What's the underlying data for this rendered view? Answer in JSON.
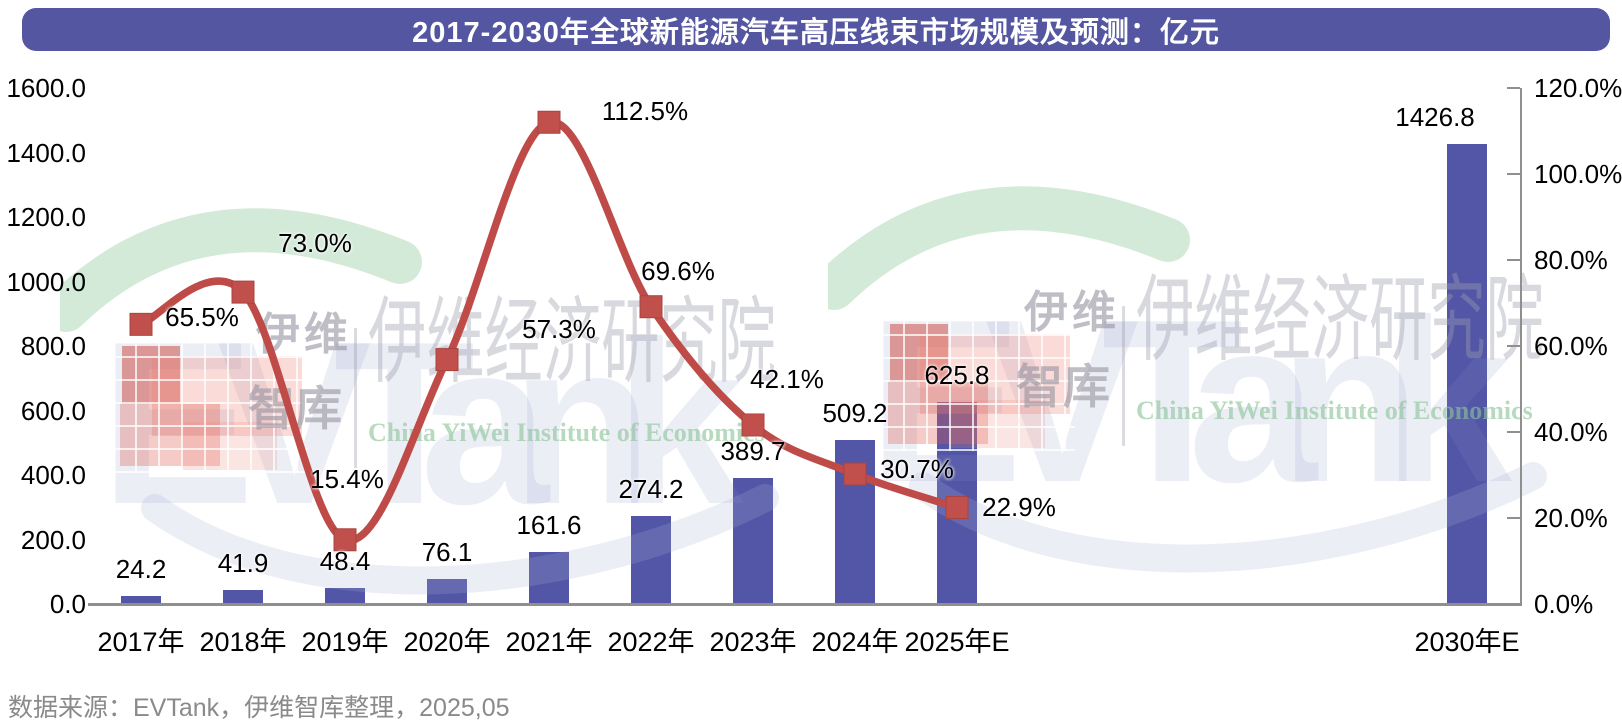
{
  "title": "2017-2030年全球新能源汽车高压线束市场规模及预测：亿元",
  "footer": {
    "source": "数据来源：EVTank，伊维智库整理，2025,05"
  },
  "colors": {
    "title_bg": "#5456A1",
    "bar": "#5355A6",
    "line": "#BE4B48",
    "marker": "#C1504C",
    "axis": "#8F8F8F",
    "label_text": "#000000",
    "source_text": "#8A8A8A"
  },
  "chart_data": {
    "type": "combo",
    "title": "2017-2030年全球新能源汽车高压线束市场规模及预测：亿元",
    "categories": [
      "2017年",
      "2018年",
      "2019年",
      "2020年",
      "2021年",
      "2022年",
      "2023年",
      "2024年",
      "2025年E",
      "2030年E"
    ],
    "category_year_offsets": [
      0,
      1,
      2,
      3,
      4,
      5,
      6,
      7,
      8,
      13
    ],
    "series": [
      {
        "id": "market_size_bar",
        "type": "bar",
        "axis": "left",
        "values": [
          24.2,
          41.9,
          48.4,
          76.1,
          161.6,
          274.2,
          389.7,
          509.2,
          625.8,
          1426.8
        ]
      },
      {
        "id": "growth_rate_line",
        "type": "line",
        "axis": "right",
        "values": [
          65.5,
          73.0,
          15.4,
          57.3,
          112.5,
          69.6,
          42.1,
          30.7,
          22.9,
          null
        ]
      }
    ],
    "left_axis": {
      "min": 0,
      "max": 1600,
      "step": 200,
      "ticks": [
        "0.0",
        "200.0",
        "400.0",
        "600.0",
        "800.0",
        "1000.0",
        "1200.0",
        "1400.0",
        "1600.0"
      ]
    },
    "right_axis": {
      "min": 0,
      "max": 120,
      "step": 20,
      "ticks": [
        "0.0%",
        "20.0%",
        "40.0%",
        "60.0%",
        "80.0%",
        "100.0%",
        "120.0%"
      ]
    },
    "grid": false,
    "legend": "none"
  },
  "watermark": {
    "brand_cn_top": "伊维",
    "brand_cn_bottom": "智库",
    "brand_en": "EVTank",
    "institute_cn": "伊维经济研究院",
    "institute_en": "China YiWei Institute of Economics"
  }
}
